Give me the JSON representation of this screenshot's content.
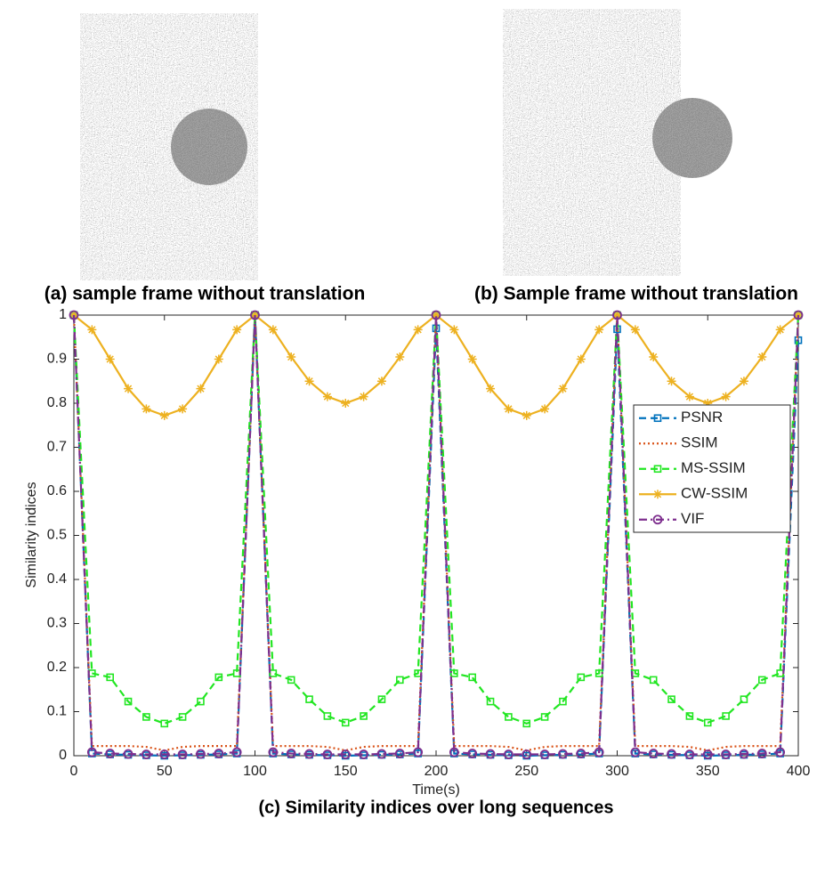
{
  "captions": [
    "(a) sample frame without translation",
    "(b) Sample frame without translation"
  ],
  "chart_data": {
    "type": "line",
    "title": "(c) Similarity indices over long sequences",
    "x_label": "Time(s)",
    "y_label": "Similarity indices",
    "x": [
      0,
      10,
      20,
      30,
      40,
      50,
      60,
      70,
      80,
      90,
      100,
      110,
      120,
      130,
      140,
      150,
      160,
      170,
      180,
      190,
      200,
      210,
      220,
      230,
      240,
      250,
      260,
      270,
      280,
      290,
      300,
      310,
      320,
      330,
      340,
      350,
      360,
      370,
      380,
      390,
      400
    ],
    "xlim": [
      0,
      400
    ],
    "xticks": [
      0,
      50,
      100,
      150,
      200,
      250,
      300,
      350,
      400
    ],
    "ylim": [
      0,
      1
    ],
    "yticks": [
      0,
      0.1,
      0.2,
      0.3,
      0.4,
      0.5,
      0.6,
      0.7,
      0.8,
      0.9,
      1
    ],
    "grid": false,
    "legend_loc": "center right",
    "series": [
      {
        "name": "PSNR",
        "color": "#0072bd",
        "dash": "dashed",
        "marker": "square",
        "values": [
          1,
          0.005,
          0.003,
          0.002,
          0.001,
          0,
          0.001,
          0.002,
          0.003,
          0.005,
          1,
          0.005,
          0.003,
          0.002,
          0.001,
          0,
          0.001,
          0.002,
          0.003,
          0.005,
          0.97,
          0.005,
          0.003,
          0.002,
          0.001,
          0,
          0.001,
          0.002,
          0.003,
          0.005,
          0.968,
          0.005,
          0.003,
          0.002,
          0.001,
          0,
          0.001,
          0.002,
          0.003,
          0.005,
          0.943
        ]
      },
      {
        "name": "SSIM",
        "color": "#d95319",
        "dash": "dotted",
        "marker": "none",
        "values": [
          1,
          0.022,
          0.022,
          0.022,
          0.02,
          0.012,
          0.02,
          0.022,
          0.022,
          0.022,
          1,
          0.022,
          0.022,
          0.022,
          0.02,
          0.012,
          0.02,
          0.022,
          0.022,
          0.022,
          1,
          0.022,
          0.022,
          0.022,
          0.02,
          0.012,
          0.02,
          0.022,
          0.022,
          0.022,
          1,
          0.022,
          0.022,
          0.022,
          0.02,
          0.012,
          0.02,
          0.022,
          0.022,
          0.022,
          1
        ]
      },
      {
        "name": "MS-SSIM",
        "color": "#22e622",
        "dash": "dashed",
        "marker": "square",
        "values": [
          1,
          0.187,
          0.178,
          0.123,
          0.088,
          0.073,
          0.088,
          0.123,
          0.178,
          0.187,
          1,
          0.187,
          0.172,
          0.128,
          0.09,
          0.075,
          0.09,
          0.128,
          0.172,
          0.187,
          1,
          0.187,
          0.178,
          0.123,
          0.088,
          0.073,
          0.088,
          0.123,
          0.178,
          0.187,
          1,
          0.187,
          0.172,
          0.128,
          0.09,
          0.075,
          0.09,
          0.128,
          0.172,
          0.187,
          1
        ]
      },
      {
        "name": "CW-SSIM",
        "color": "#edb120",
        "dash": "solid",
        "marker": "star",
        "values": [
          1,
          0.967,
          0.9,
          0.833,
          0.787,
          0.772,
          0.787,
          0.833,
          0.9,
          0.967,
          1,
          0.967,
          0.905,
          0.85,
          0.815,
          0.8,
          0.815,
          0.85,
          0.905,
          0.967,
          1,
          0.967,
          0.9,
          0.833,
          0.787,
          0.772,
          0.787,
          0.833,
          0.9,
          0.967,
          1,
          0.967,
          0.905,
          0.85,
          0.815,
          0.8,
          0.815,
          0.85,
          0.905,
          0.967,
          1
        ]
      },
      {
        "name": "VIF",
        "color": "#7e2f8e",
        "dash": "dashdot",
        "marker": "circle",
        "values": [
          1,
          0.008,
          0.005,
          0.004,
          0.003,
          0.003,
          0.003,
          0.004,
          0.005,
          0.008,
          1,
          0.008,
          0.005,
          0.004,
          0.003,
          0.003,
          0.003,
          0.004,
          0.005,
          0.008,
          1,
          0.008,
          0.005,
          0.004,
          0.003,
          0.003,
          0.003,
          0.004,
          0.005,
          0.008,
          1,
          0.008,
          0.005,
          0.004,
          0.003,
          0.003,
          0.003,
          0.004,
          0.005,
          0.008,
          1
        ]
      }
    ]
  }
}
